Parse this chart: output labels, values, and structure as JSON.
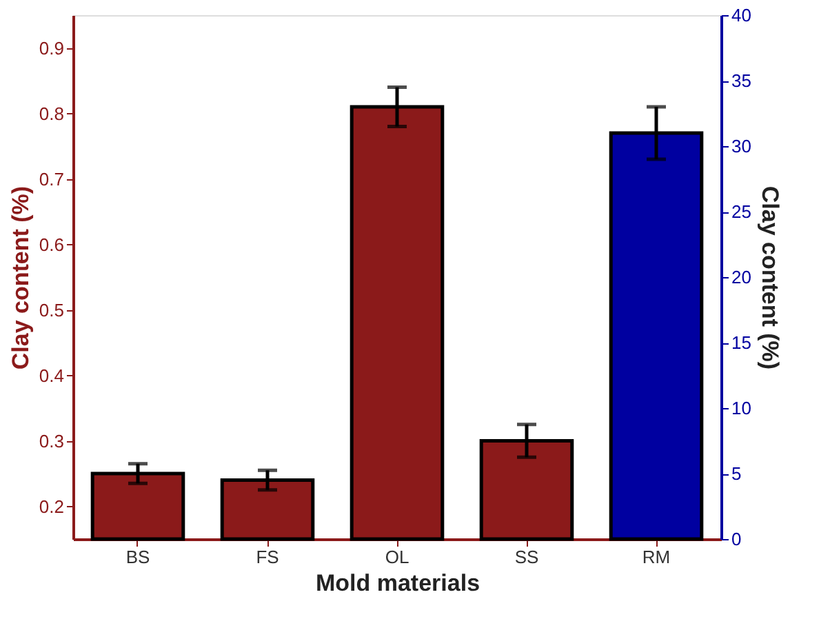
{
  "chart_data": {
    "type": "bar",
    "xlabel": "Mold materials",
    "ylabel": "Clay content (%)",
    "y2label": "Clay content (%)",
    "categories": [
      "BS",
      "FS",
      "OL",
      "SS",
      "RM"
    ],
    "series": [
      {
        "color": "#8b1a1a",
        "values": [
          0.25,
          0.24,
          0.81,
          0.3,
          null
        ],
        "errors": [
          0.015,
          0.015,
          0.03,
          0.025,
          null
        ]
      },
      {
        "color": "#0000a0",
        "axis": "y2",
        "values": [
          null,
          null,
          null,
          null,
          31
        ],
        "errors": [
          null,
          null,
          null,
          null,
          2
        ]
      }
    ],
    "ylim": [
      0.15,
      0.95
    ],
    "yticks": [
      0.2,
      0.3,
      0.4,
      0.5,
      0.6,
      0.7,
      0.8,
      0.9
    ],
    "y2lim": [
      0,
      40
    ],
    "y2ticks": [
      0,
      5,
      10,
      15,
      20,
      25,
      30,
      35,
      40
    ],
    "grid": false
  }
}
